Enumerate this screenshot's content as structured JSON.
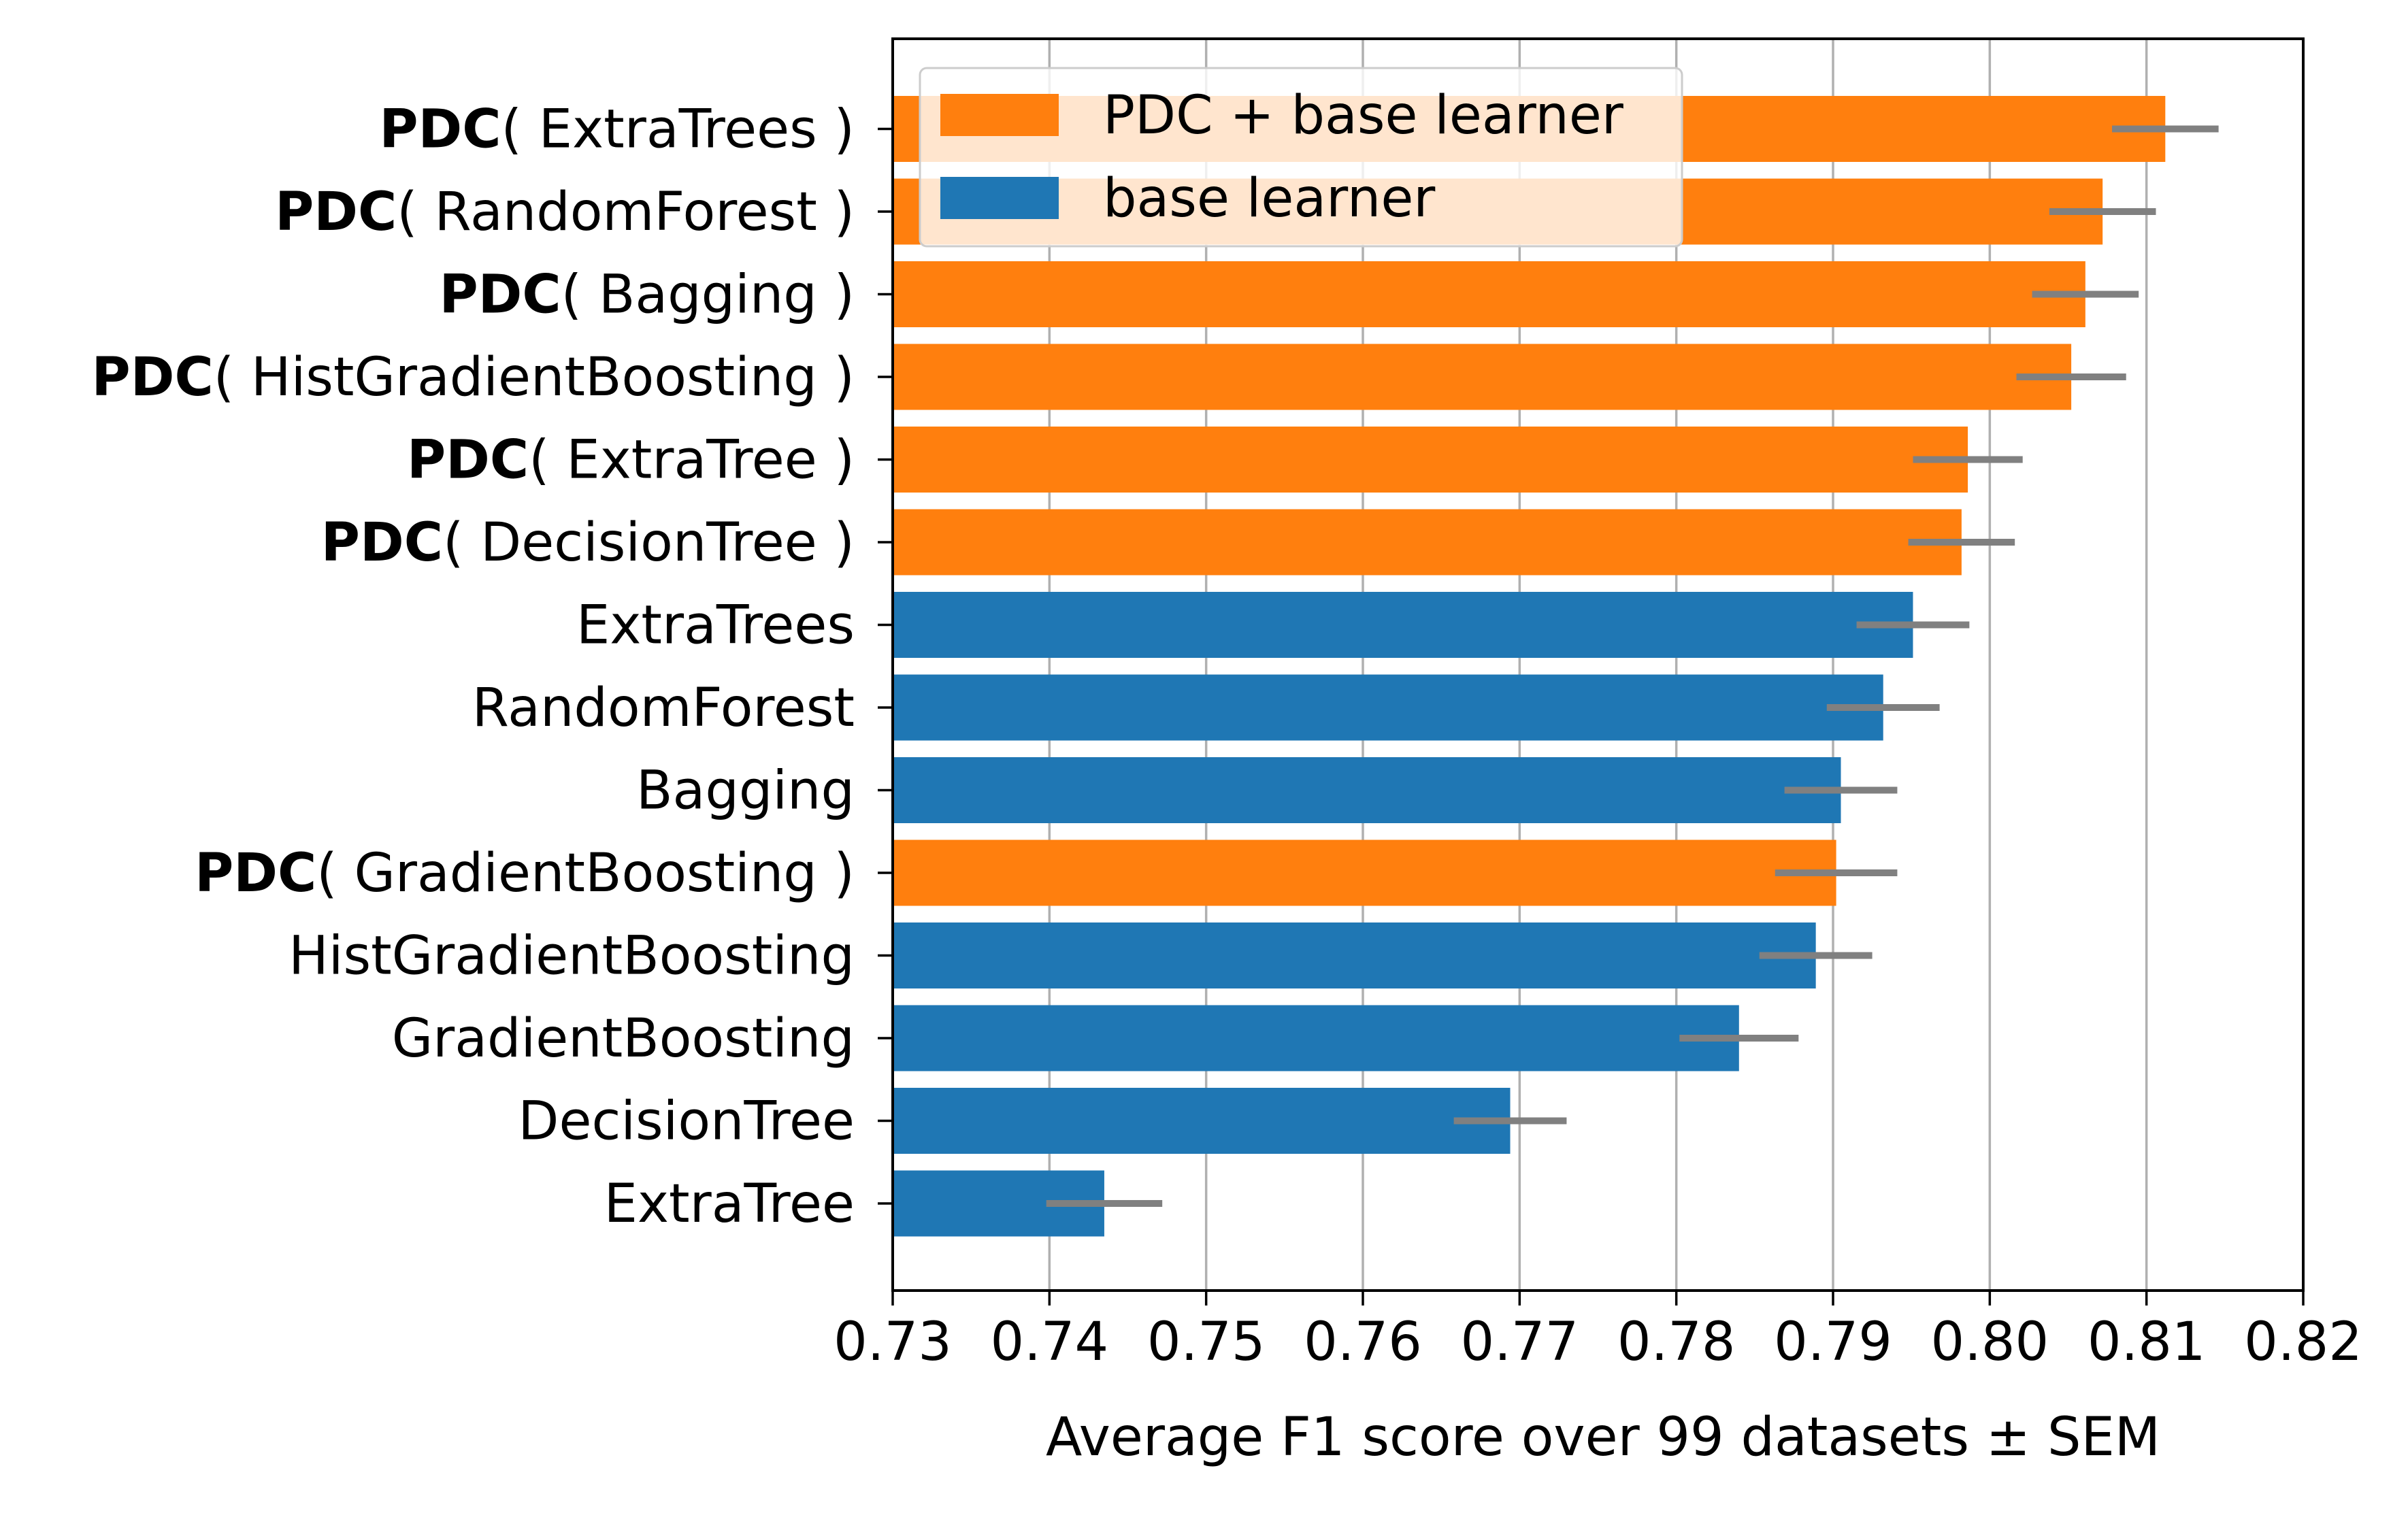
{
  "chart_data": {
    "type": "bar",
    "orientation": "horizontal",
    "xlabel": "Average F1 score over 99 datasets ± SEM",
    "ylabel": "",
    "xlim": [
      0.73,
      0.82
    ],
    "xticks": [
      "0.73",
      "0.74",
      "0.75",
      "0.76",
      "0.77",
      "0.78",
      "0.79",
      "0.80",
      "0.81",
      "0.82"
    ],
    "grid": "vertical",
    "legend_position": "top-left",
    "colors": {
      "pdc": "#ff7f0e",
      "base": "#1f77b4",
      "errorbar": "#808080"
    },
    "legend": [
      {
        "label": "PDC + base learner",
        "group": "pdc"
      },
      {
        "label": "base learner",
        "group": "base"
      }
    ],
    "bars": [
      {
        "prefix": "PDC",
        "label": "( ExtraTrees )",
        "group": "pdc",
        "value": 0.8112,
        "sem": 0.0034
      },
      {
        "prefix": "PDC",
        "label": "( RandomForest )",
        "group": "pdc",
        "value": 0.8072,
        "sem": 0.0034
      },
      {
        "prefix": "PDC",
        "label": "( Bagging )",
        "group": "pdc",
        "value": 0.8061,
        "sem": 0.0034
      },
      {
        "prefix": "PDC",
        "label": "( HistGradientBoosting )",
        "group": "pdc",
        "value": 0.8052,
        "sem": 0.0035
      },
      {
        "prefix": "PDC",
        "label": "( ExtraTree )",
        "group": "pdc",
        "value": 0.7986,
        "sem": 0.0035
      },
      {
        "prefix": "PDC",
        "label": "( DecisionTree )",
        "group": "pdc",
        "value": 0.7982,
        "sem": 0.0034
      },
      {
        "prefix": "",
        "label": "ExtraTrees",
        "group": "base",
        "value": 0.7951,
        "sem": 0.0036
      },
      {
        "prefix": "",
        "label": "RandomForest",
        "group": "base",
        "value": 0.7932,
        "sem": 0.0036
      },
      {
        "prefix": "",
        "label": "Bagging",
        "group": "base",
        "value": 0.7905,
        "sem": 0.0036
      },
      {
        "prefix": "PDC",
        "label": "( GradientBoosting )",
        "group": "pdc",
        "value": 0.7902,
        "sem": 0.0039
      },
      {
        "prefix": "",
        "label": "HistGradientBoosting",
        "group": "base",
        "value": 0.7889,
        "sem": 0.0036
      },
      {
        "prefix": "",
        "label": "GradientBoosting",
        "group": "base",
        "value": 0.784,
        "sem": 0.0038
      },
      {
        "prefix": "",
        "label": "DecisionTree",
        "group": "base",
        "value": 0.7694,
        "sem": 0.0036
      },
      {
        "prefix": "",
        "label": "ExtraTree",
        "group": "base",
        "value": 0.7435,
        "sem": 0.0037
      }
    ]
  }
}
